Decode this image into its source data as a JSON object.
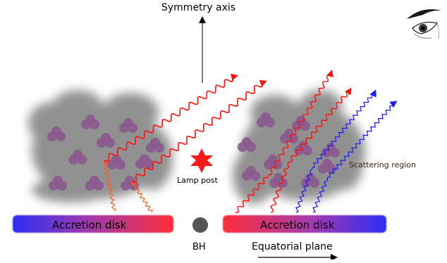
{
  "labels": {
    "symmetry_axis": "Symmetry axis",
    "lamp_post": "Lamp post",
    "black_hole": "BH",
    "equatorial_plane": "Equatorial plane",
    "scattering_region": "Scattering region",
    "accretion_disk_left": "Accretion disk",
    "accretion_disk_right": "Accretion disk"
  },
  "colors": {
    "disk_blue": "#2d2df5",
    "disk_red": "#ff2d3a",
    "cloud_gray": "#8c8c8c",
    "clump_purple": "#8a5a8e",
    "photon_red": "#ff1010",
    "photon_orange": "#ff5a1a",
    "photon_blue": "#1a1aff",
    "lamp_red": "#ff1a1a",
    "bh_gray": "#555555"
  },
  "icons": {
    "eye": "eye-icon",
    "lamp": "star-icon"
  }
}
